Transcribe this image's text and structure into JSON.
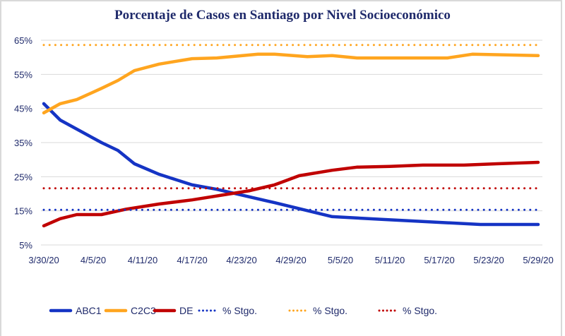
{
  "chart_data": {
    "type": "line",
    "title": "Porcentaje de Casos en Santiago por Nivel Socioeconómico",
    "xlabel": "",
    "ylabel": "",
    "ylim": [
      5,
      65
    ],
    "yticks": [
      "65%",
      "55%",
      "45%",
      "35%",
      "25%",
      "15%",
      "5%"
    ],
    "ytick_values": [
      65,
      55,
      45,
      35,
      25,
      15,
      5
    ],
    "xticks": [
      "3/30/20",
      "4/5/20",
      "4/11/20",
      "4/17/20",
      "4/23/20",
      "4/29/20",
      "5/5/20",
      "5/11/20",
      "5/17/20",
      "5/23/20",
      "5/29/20"
    ],
    "x_day_range": [
      0,
      60
    ],
    "grid": true,
    "legend_position": "bottom",
    "series": [
      {
        "name": "ABC1",
        "color": "#1534c4",
        "style": "solid",
        "days": [
          0,
          2,
          7,
          9,
          11,
          14,
          18,
          21,
          28,
          35,
          41,
          49,
          53,
          60
        ],
        "values": [
          46.4,
          41.6,
          35.0,
          32.7,
          28.8,
          25.7,
          22.6,
          21.3,
          17.4,
          13.3,
          12.5,
          11.5,
          11.0,
          11.0
        ]
      },
      {
        "name": "C2C3",
        "color": "#ffa51f",
        "style": "solid",
        "days": [
          0,
          2,
          4,
          7,
          9,
          11,
          14,
          18,
          21,
          26,
          28,
          32,
          35,
          38,
          42,
          49,
          52,
          60
        ],
        "values": [
          43.7,
          46.4,
          47.6,
          50.9,
          53.2,
          56.1,
          58.0,
          59.6,
          59.8,
          60.9,
          60.9,
          60.2,
          60.5,
          59.8,
          59.8,
          59.8,
          60.9,
          60.5
        ]
      },
      {
        "name": "DE",
        "color": "#c00000",
        "style": "solid",
        "days": [
          0,
          2,
          4,
          7,
          10,
          14,
          18,
          25,
          28,
          31,
          35,
          38,
          42,
          46,
          51,
          55,
          60
        ],
        "values": [
          10.6,
          12.7,
          13.9,
          13.9,
          15.5,
          17.0,
          18.2,
          20.9,
          22.6,
          25.3,
          26.9,
          27.8,
          28.0,
          28.4,
          28.4,
          28.8,
          29.2
        ]
      },
      {
        "name": "% Stgo.",
        "color": "#1534c4",
        "style": "dotted",
        "days": [
          0,
          60
        ],
        "values": [
          15.3,
          15.3
        ]
      },
      {
        "name": "% Stgo.",
        "color": "#ffa51f",
        "style": "dotted",
        "days": [
          0,
          60
        ],
        "values": [
          63.6,
          63.6
        ]
      },
      {
        "name": "% Stgo.",
        "color": "#c00000",
        "style": "dotted",
        "days": [
          0,
          60
        ],
        "values": [
          21.6,
          21.6
        ]
      }
    ]
  }
}
